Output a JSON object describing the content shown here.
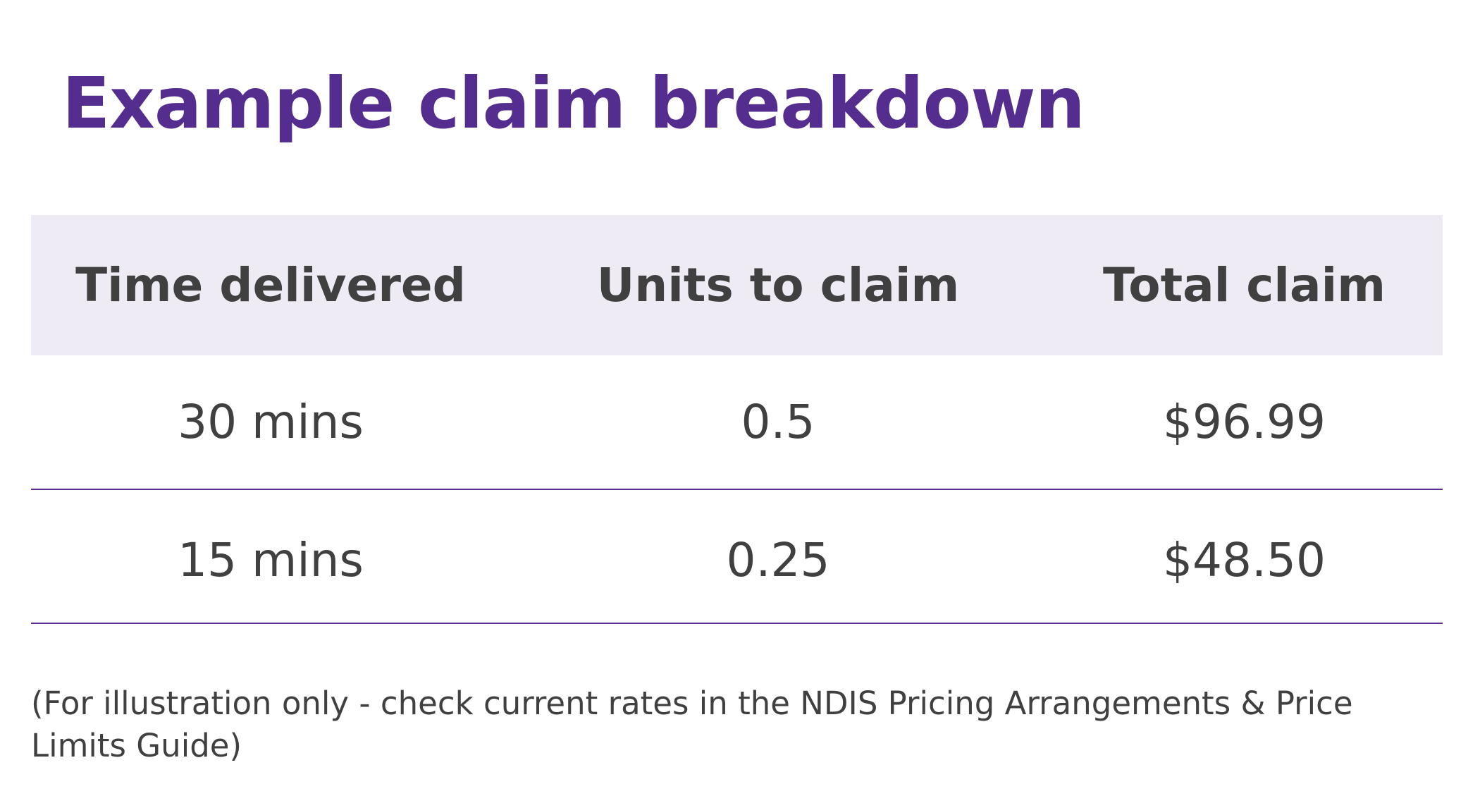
{
  "title": "Example claim breakdown",
  "table": {
    "headers": [
      "Time delivered",
      "Units to claim",
      "Total claim"
    ],
    "rows": [
      [
        "30 mins",
        "0.5",
        "$96.99"
      ],
      [
        "15 mins",
        "0.25",
        "$48.50"
      ]
    ]
  },
  "note": "(For illustration only - check current rates in the NDIS Pricing Arrangements & Price Limits Guide)",
  "colors": {
    "title": "#552d8f",
    "header_background": "#efebf5",
    "row_divider": "#5b2d90",
    "text": "#404040"
  }
}
